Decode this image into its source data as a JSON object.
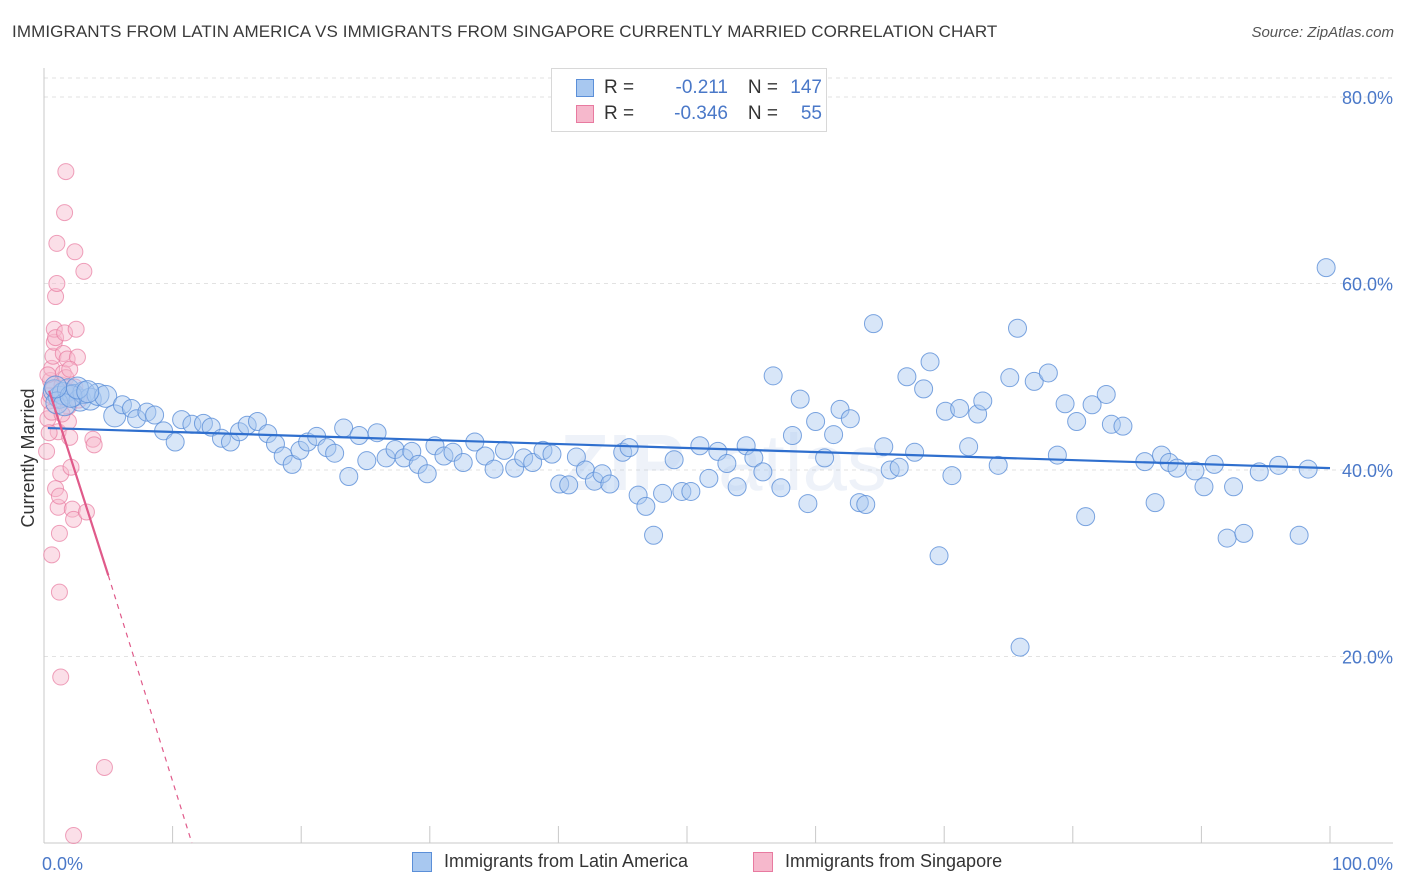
{
  "header": {
    "title": "IMMIGRANTS FROM LATIN AMERICA VS IMMIGRANTS FROM SINGAPORE CURRENTLY MARRIED CORRELATION CHART",
    "source": "Source: ZipAtlas.com"
  },
  "legend": {
    "rows": [
      {
        "r_label": "R =",
        "r_value": "-0.211",
        "n_label": "N =",
        "n_value": "147"
      },
      {
        "r_label": "R =",
        "r_value": "-0.346",
        "n_label": "N =",
        "n_value": "55"
      }
    ]
  },
  "colors": {
    "blue_fill": "#a8c8f0",
    "blue_stroke": "#5b8fd8",
    "blue_line": "#2f6fce",
    "pink_fill": "#f6b8cc",
    "pink_stroke": "#e87aa0",
    "pink_line": "#e05a8a",
    "axis_text": "#4a78c8",
    "grid": "#e2e2e2"
  },
  "chart_data": {
    "type": "scatter",
    "title": "IMMIGRANTS FROM LATIN AMERICA VS IMMIGRANTS FROM SINGAPORE CURRENTLY MARRIED CORRELATION CHART",
    "xlabel": "",
    "ylabel": "Currently Married",
    "xlim": [
      0,
      100
    ],
    "ylim": [
      0,
      80
    ],
    "x_tick_labels": [
      "0.0%",
      "100.0%"
    ],
    "y_tick_labels": [
      "20.0%",
      "40.0%",
      "60.0%",
      "80.0%"
    ],
    "y_ticks": [
      20,
      40,
      60,
      80
    ],
    "grid": true,
    "legend_position": "top-center",
    "series": [
      {
        "name": "Immigrants from Latin America",
        "color": "#a8c8f0",
        "trend": {
          "x0": 0.3,
          "y0": 44.5,
          "x1": 100,
          "y1": 40.2
        },
        "points": [
          [
            0.8,
            48.5
          ],
          [
            1.2,
            47.8
          ],
          [
            1.5,
            48.2
          ],
          [
            1.9,
            48.6
          ],
          [
            2.3,
            48.0
          ],
          [
            2.8,
            47.5
          ],
          [
            3.1,
            48.3
          ],
          [
            3.6,
            47.6
          ],
          [
            4.2,
            48.1
          ],
          [
            4.8,
            47.9
          ],
          [
            5.5,
            45.8
          ],
          [
            6.1,
            47.0
          ],
          [
            6.8,
            46.6
          ],
          [
            7.2,
            45.5
          ],
          [
            8.0,
            46.2
          ],
          [
            8.6,
            45.9
          ],
          [
            9.3,
            44.2
          ],
          [
            10.2,
            43.0
          ],
          [
            10.7,
            45.4
          ],
          [
            11.5,
            44.9
          ],
          [
            12.4,
            45.0
          ],
          [
            13.0,
            44.6
          ],
          [
            13.8,
            43.4
          ],
          [
            14.5,
            43.0
          ],
          [
            15.2,
            44.1
          ],
          [
            15.8,
            44.8
          ],
          [
            16.6,
            45.2
          ],
          [
            17.4,
            43.9
          ],
          [
            18.0,
            42.8
          ],
          [
            18.6,
            41.5
          ],
          [
            19.3,
            40.6
          ],
          [
            19.9,
            42.1
          ],
          [
            20.5,
            43.0
          ],
          [
            21.2,
            43.6
          ],
          [
            22.0,
            42.4
          ],
          [
            22.6,
            41.8
          ],
          [
            23.3,
            44.5
          ],
          [
            23.7,
            39.3
          ],
          [
            24.5,
            43.7
          ],
          [
            25.1,
            41.0
          ],
          [
            25.9,
            44.0
          ],
          [
            26.6,
            41.3
          ],
          [
            27.3,
            42.2
          ],
          [
            28.0,
            41.3
          ],
          [
            28.6,
            42.0
          ],
          [
            29.1,
            40.6
          ],
          [
            29.8,
            39.6
          ],
          [
            30.4,
            42.6
          ],
          [
            31.1,
            41.5
          ],
          [
            31.8,
            41.9
          ],
          [
            32.6,
            40.8
          ],
          [
            33.5,
            43.0
          ],
          [
            34.3,
            41.5
          ],
          [
            35.0,
            40.1
          ],
          [
            35.8,
            42.1
          ],
          [
            36.6,
            40.2
          ],
          [
            37.3,
            41.3
          ],
          [
            38.0,
            40.8
          ],
          [
            38.8,
            42.1
          ],
          [
            39.5,
            41.7
          ],
          [
            40.1,
            38.5
          ],
          [
            40.8,
            38.4
          ],
          [
            41.4,
            41.4
          ],
          [
            42.1,
            40.0
          ],
          [
            42.8,
            38.8
          ],
          [
            43.4,
            39.6
          ],
          [
            44.0,
            38.5
          ],
          [
            45.0,
            41.9
          ],
          [
            45.5,
            42.4
          ],
          [
            46.2,
            37.3
          ],
          [
            46.8,
            36.1
          ],
          [
            47.4,
            33.0
          ],
          [
            48.1,
            37.5
          ],
          [
            49.0,
            41.1
          ],
          [
            49.6,
            37.7
          ],
          [
            50.3,
            37.7
          ],
          [
            51.0,
            42.6
          ],
          [
            51.7,
            39.1
          ],
          [
            52.4,
            42.0
          ],
          [
            53.1,
            40.7
          ],
          [
            53.9,
            38.2
          ],
          [
            54.6,
            42.6
          ],
          [
            55.2,
            41.3
          ],
          [
            55.9,
            39.8
          ],
          [
            56.7,
            50.1
          ],
          [
            57.3,
            38.1
          ],
          [
            58.2,
            43.7
          ],
          [
            58.8,
            47.6
          ],
          [
            59.4,
            36.4
          ],
          [
            60.0,
            45.2
          ],
          [
            60.7,
            41.3
          ],
          [
            61.4,
            43.8
          ],
          [
            61.9,
            46.5
          ],
          [
            62.7,
            45.5
          ],
          [
            63.4,
            36.5
          ],
          [
            63.9,
            36.3
          ],
          [
            64.5,
            55.7
          ],
          [
            65.3,
            42.5
          ],
          [
            65.8,
            40.0
          ],
          [
            66.5,
            40.3
          ],
          [
            67.1,
            50.0
          ],
          [
            67.7,
            41.9
          ],
          [
            68.4,
            48.7
          ],
          [
            68.9,
            51.6
          ],
          [
            69.6,
            30.8
          ],
          [
            70.1,
            46.3
          ],
          [
            70.6,
            39.4
          ],
          [
            71.2,
            46.6
          ],
          [
            71.9,
            42.5
          ],
          [
            72.6,
            46.0
          ],
          [
            73.0,
            47.4
          ],
          [
            74.2,
            40.5
          ],
          [
            75.1,
            49.9
          ],
          [
            75.7,
            55.2
          ],
          [
            75.9,
            21.0
          ],
          [
            77.0,
            49.5
          ],
          [
            78.1,
            50.4
          ],
          [
            78.8,
            41.6
          ],
          [
            79.4,
            47.1
          ],
          [
            80.3,
            45.2
          ],
          [
            81.0,
            35.0
          ],
          [
            81.5,
            47.0
          ],
          [
            82.6,
            48.1
          ],
          [
            83.0,
            44.9
          ],
          [
            83.9,
            44.7
          ],
          [
            85.6,
            40.9
          ],
          [
            86.4,
            36.5
          ],
          [
            86.9,
            41.6
          ],
          [
            87.5,
            40.8
          ],
          [
            88.1,
            40.2
          ],
          [
            90.2,
            38.2
          ],
          [
            92.0,
            32.7
          ],
          [
            92.5,
            38.2
          ],
          [
            93.3,
            33.2
          ],
          [
            97.6,
            33.0
          ],
          [
            99.7,
            61.7
          ],
          [
            98.3,
            40.1
          ],
          [
            96.0,
            40.5
          ],
          [
            94.5,
            39.8
          ],
          [
            91.0,
            40.6
          ],
          [
            89.5,
            39.9
          ],
          [
            1.0,
            47.2
          ],
          [
            1.6,
            47.0
          ],
          [
            2.1,
            47.9
          ],
          [
            2.6,
            48.8
          ],
          [
            3.4,
            48.4
          ],
          [
            0.9,
            48.9
          ]
        ]
      },
      {
        "name": "Immigrants from Singapore",
        "color": "#f6b8cc",
        "trend": {
          "x0": 0.4,
          "y0": 48.5,
          "x1": 5.0,
          "y1": 28.7
        },
        "trend_dashed": {
          "x0": 5.0,
          "y0": 28.7,
          "x1": 11.5,
          "y1": 0
        },
        "points": [
          [
            0.2,
            42.0
          ],
          [
            0.3,
            45.5
          ],
          [
            0.4,
            47.4
          ],
          [
            0.5,
            48.0
          ],
          [
            0.5,
            49.6
          ],
          [
            0.6,
            46.2
          ],
          [
            0.6,
            50.9
          ],
          [
            0.7,
            48.7
          ],
          [
            0.7,
            52.2
          ],
          [
            0.8,
            53.7
          ],
          [
            0.8,
            55.1
          ],
          [
            0.9,
            54.2
          ],
          [
            0.9,
            58.6
          ],
          [
            1.0,
            60.0
          ],
          [
            1.0,
            64.3
          ],
          [
            1.1,
            44.1
          ],
          [
            1.1,
            36.0
          ],
          [
            1.2,
            33.2
          ],
          [
            1.2,
            26.9
          ],
          [
            1.3,
            17.8
          ],
          [
            1.3,
            39.6
          ],
          [
            1.4,
            47.8
          ],
          [
            1.4,
            49.1
          ],
          [
            1.5,
            50.4
          ],
          [
            1.5,
            52.5
          ],
          [
            1.6,
            54.7
          ],
          [
            1.6,
            67.6
          ],
          [
            1.7,
            72.0
          ],
          [
            1.8,
            51.9
          ],
          [
            1.8,
            48.4
          ],
          [
            1.9,
            46.8
          ],
          [
            2.0,
            43.5
          ],
          [
            2.1,
            40.3
          ],
          [
            2.2,
            35.8
          ],
          [
            2.3,
            34.7
          ],
          [
            2.4,
            63.4
          ],
          [
            2.5,
            55.1
          ],
          [
            2.6,
            52.1
          ],
          [
            2.7,
            47.5
          ],
          [
            3.1,
            61.3
          ],
          [
            3.3,
            35.5
          ],
          [
            3.8,
            43.3
          ],
          [
            3.9,
            42.7
          ],
          [
            4.7,
            8.1
          ],
          [
            2.3,
            0.8
          ],
          [
            1.9,
            45.2
          ],
          [
            0.4,
            44.0
          ],
          [
            0.9,
            38.0
          ],
          [
            1.2,
            37.2
          ],
          [
            0.6,
            30.9
          ],
          [
            1.4,
            46.0
          ],
          [
            1.7,
            49.9
          ],
          [
            2.0,
            50.8
          ],
          [
            2.4,
            48.9
          ],
          [
            0.3,
            50.2
          ]
        ]
      }
    ],
    "annotations": []
  },
  "bottom_legend": [
    {
      "label": "Immigrants from Latin America"
    },
    {
      "label": "Immigrants from Singapore"
    }
  ]
}
